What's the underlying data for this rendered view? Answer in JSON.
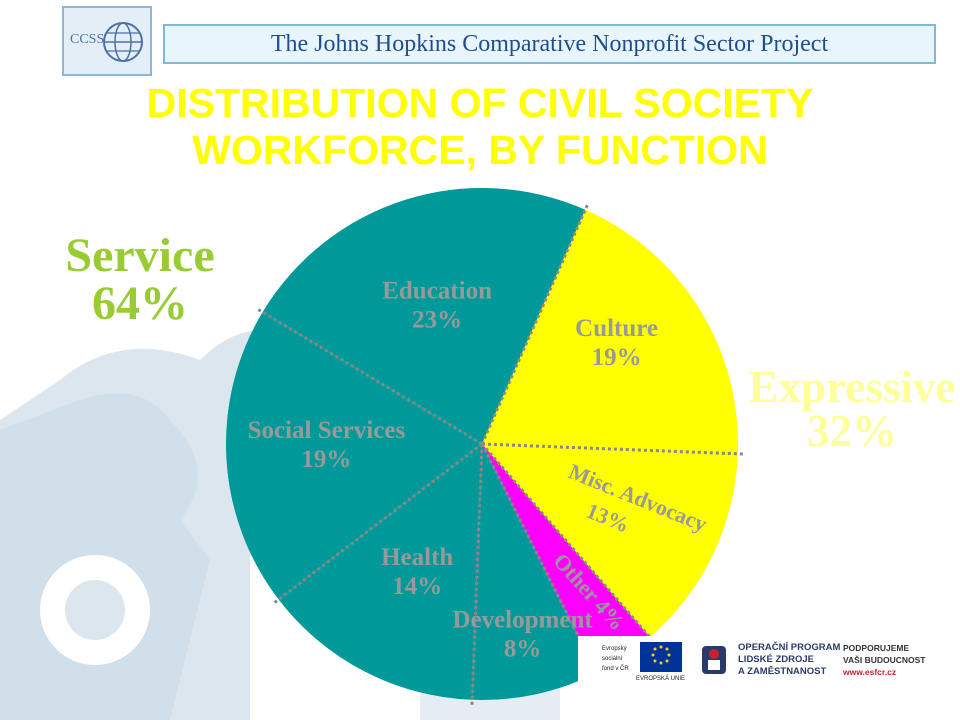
{
  "header": {
    "logo_text": "CCSS",
    "project_name": "The Johns Hopkins Comparative Nonprofit Sector Project"
  },
  "chart_data": {
    "type": "pie",
    "title_lines": [
      "DISTRIBUTION OF CIVIL SOCIETY",
      "WORKFORCE, BY FUNCTION"
    ],
    "slices": [
      {
        "name": "Education",
        "value": 23,
        "label": "23%",
        "group": "Service",
        "color": "#009999",
        "label_color": "#999999"
      },
      {
        "name": "Culture",
        "value": 19,
        "label": "19%",
        "group": "Expressive",
        "color": "#ffff00",
        "label_color": "#999999"
      },
      {
        "name": "Misc. Advocacy",
        "value": 13,
        "label": "13%",
        "group": "Expressive",
        "color": "#ffff00",
        "label_color": "#999999"
      },
      {
        "name": "Other",
        "value": 4,
        "label": "4%",
        "group": "Other",
        "color": "#ff00ff",
        "label_color": "#999999"
      },
      {
        "name": "Development",
        "value": 8,
        "label": "8%",
        "group": "Service",
        "color": "#009999",
        "label_color": "#999999"
      },
      {
        "name": "Health",
        "value": 14,
        "label": "14%",
        "group": "Service",
        "color": "#009999",
        "label_color": "#999999"
      },
      {
        "name": "Social Services",
        "value": 19,
        "label": "19%",
        "group": "Service",
        "color": "#009999",
        "label_color": "#999999"
      }
    ],
    "groups": [
      {
        "name": "Service",
        "value": 64,
        "label": "64%",
        "color": "#99cc33"
      },
      {
        "name": "Expressive",
        "value": 32,
        "label": "32%",
        "color": "#ffff99"
      }
    ],
    "other_label": "Other 4%"
  },
  "footer": {
    "eu_fund_text": [
      "Evropský",
      "sociální",
      "fond v ČR"
    ],
    "eu_union_text": "EVROPSKÁ UNIE",
    "op_lines": [
      "OPERAČNÍ PROGRAM",
      "LIDSKÉ ZDROJE",
      "A ZAMĚSTNANOST"
    ],
    "support_lines": [
      "PODPORUJEME",
      "VAŠI BUDOUCNOST"
    ],
    "website": "www.esfcr.cz"
  },
  "colors": {
    "title": "#ffff00",
    "service_fill": "#009999",
    "expressive_fill": "#ffff00",
    "other_fill": "#ff00ff",
    "divider": "#888888",
    "puzzle_bg": "#dbe6ef"
  }
}
